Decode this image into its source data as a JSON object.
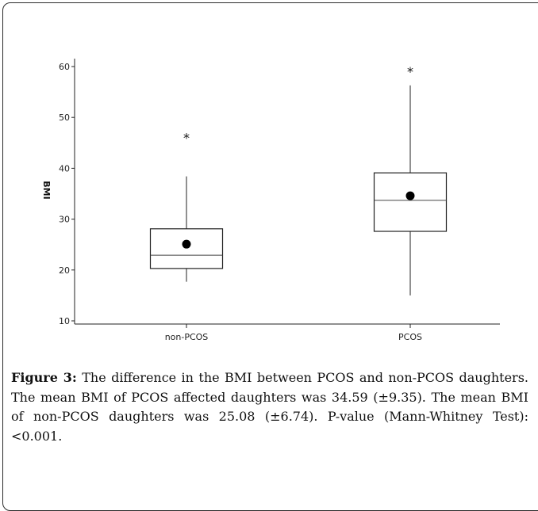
{
  "caption": {
    "label": "Figure 3:",
    "text": "The difference in the BMI between PCOS and non-PCOS daughters. The mean BMI of PCOS affected daughters was 34.59 (±9.35). The mean BMI of non-PCOS daughters was 25.08 (±6.74). P-value (Mann-Whitney Test): <0.001."
  },
  "chart_data": {
    "type": "box",
    "title": "",
    "xlabel": "",
    "ylabel": "BMI",
    "ylim": [
      10,
      60
    ],
    "yticks": [
      10,
      20,
      30,
      40,
      50,
      60
    ],
    "grid": false,
    "categories": [
      "non-PCOS",
      "PCOS"
    ],
    "boxes": [
      {
        "category": "non-PCOS",
        "whisker_low": 17.7,
        "q1": 20.3,
        "median": 22.9,
        "q3": 28.1,
        "whisker_high": 38.4,
        "mean": 25.08,
        "outliers": [
          46.2
        ]
      },
      {
        "category": "PCOS",
        "whisker_low": 15.0,
        "q1": 27.6,
        "median": 33.7,
        "q3": 39.1,
        "whisker_high": 56.3,
        "mean": 34.59,
        "outliers": [
          59.2
        ]
      }
    ]
  }
}
